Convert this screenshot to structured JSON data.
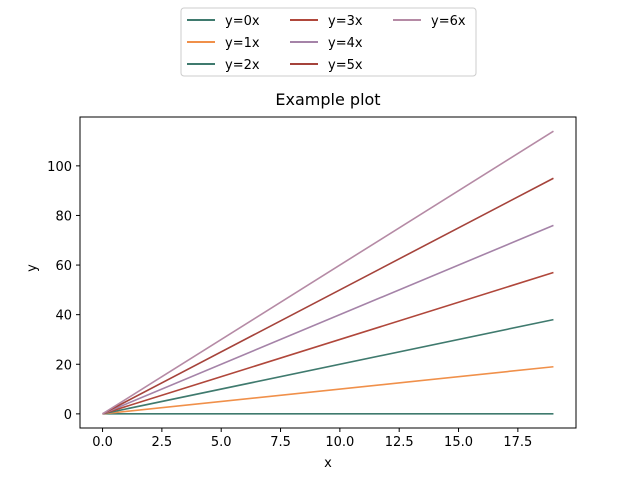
{
  "chart_data": {
    "type": "line",
    "title": "Example plot",
    "xlabel": "x",
    "ylabel": "y",
    "xlim": [
      -0.95,
      19.95
    ],
    "ylim": [
      -5.7,
      119.7
    ],
    "x_ticks": [
      0.0,
      2.5,
      5.0,
      7.5,
      10.0,
      12.5,
      15.0,
      17.5
    ],
    "x_tick_labels": [
      "0.0",
      "2.5",
      "5.0",
      "7.5",
      "10.0",
      "12.5",
      "15.0",
      "17.5"
    ],
    "y_ticks": [
      0,
      20,
      40,
      60,
      80,
      100
    ],
    "y_tick_labels": [
      "0",
      "20",
      "40",
      "60",
      "80",
      "100"
    ],
    "grid": false,
    "legend_position": "upper center, above plot",
    "legend_columns": 3,
    "x": [
      0,
      19
    ],
    "series": [
      {
        "name": "y=0x",
        "values": [
          0,
          0
        ],
        "color": "#3f7a6e"
      },
      {
        "name": "y=1x",
        "values": [
          0,
          19
        ],
        "color": "#f0904a"
      },
      {
        "name": "y=2x",
        "values": [
          0,
          38
        ],
        "color": "#3f7a6e"
      },
      {
        "name": "y=3x",
        "values": [
          0,
          57
        ],
        "color": "#b0473b"
      },
      {
        "name": "y=4x",
        "values": [
          0,
          76
        ],
        "color": "#a583a8"
      },
      {
        "name": "y=5x",
        "values": [
          0,
          95
        ],
        "color": "#a5433b"
      },
      {
        "name": "y=6x",
        "values": [
          0,
          114
        ],
        "color": "#b58aa5"
      }
    ]
  }
}
